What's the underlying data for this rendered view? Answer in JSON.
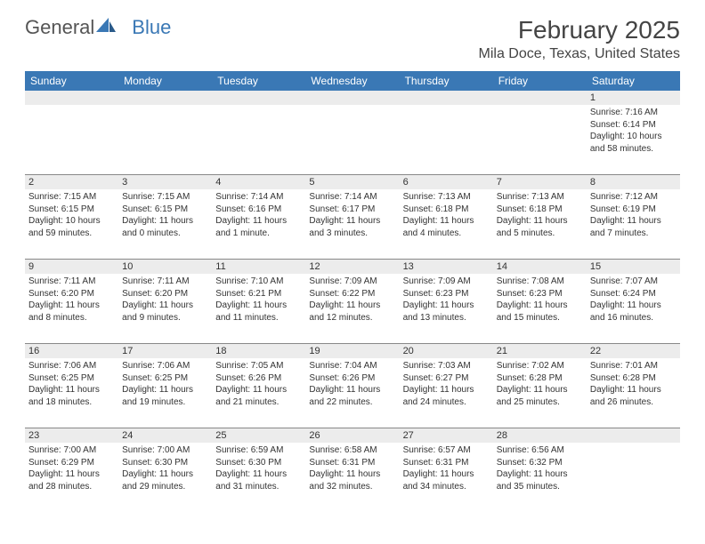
{
  "logo": {
    "part1": "General",
    "part2": "Blue"
  },
  "title": "February 2025",
  "location": "Mila Doce, Texas, United States",
  "colors": {
    "header_bg": "#3a78b5",
    "header_text": "#ffffff",
    "daynum_bg": "#ececec",
    "border": "#888888",
    "text": "#333333",
    "bg": "#ffffff"
  },
  "day_names": [
    "Sunday",
    "Monday",
    "Tuesday",
    "Wednesday",
    "Thursday",
    "Friday",
    "Saturday"
  ],
  "weeks": [
    [
      null,
      null,
      null,
      null,
      null,
      null,
      {
        "n": "1",
        "sr": "Sunrise: 7:16 AM",
        "ss": "Sunset: 6:14 PM",
        "dl": "Daylight: 10 hours and 58 minutes."
      }
    ],
    [
      {
        "n": "2",
        "sr": "Sunrise: 7:15 AM",
        "ss": "Sunset: 6:15 PM",
        "dl": "Daylight: 10 hours and 59 minutes."
      },
      {
        "n": "3",
        "sr": "Sunrise: 7:15 AM",
        "ss": "Sunset: 6:15 PM",
        "dl": "Daylight: 11 hours and 0 minutes."
      },
      {
        "n": "4",
        "sr": "Sunrise: 7:14 AM",
        "ss": "Sunset: 6:16 PM",
        "dl": "Daylight: 11 hours and 1 minute."
      },
      {
        "n": "5",
        "sr": "Sunrise: 7:14 AM",
        "ss": "Sunset: 6:17 PM",
        "dl": "Daylight: 11 hours and 3 minutes."
      },
      {
        "n": "6",
        "sr": "Sunrise: 7:13 AM",
        "ss": "Sunset: 6:18 PM",
        "dl": "Daylight: 11 hours and 4 minutes."
      },
      {
        "n": "7",
        "sr": "Sunrise: 7:13 AM",
        "ss": "Sunset: 6:18 PM",
        "dl": "Daylight: 11 hours and 5 minutes."
      },
      {
        "n": "8",
        "sr": "Sunrise: 7:12 AM",
        "ss": "Sunset: 6:19 PM",
        "dl": "Daylight: 11 hours and 7 minutes."
      }
    ],
    [
      {
        "n": "9",
        "sr": "Sunrise: 7:11 AM",
        "ss": "Sunset: 6:20 PM",
        "dl": "Daylight: 11 hours and 8 minutes."
      },
      {
        "n": "10",
        "sr": "Sunrise: 7:11 AM",
        "ss": "Sunset: 6:20 PM",
        "dl": "Daylight: 11 hours and 9 minutes."
      },
      {
        "n": "11",
        "sr": "Sunrise: 7:10 AM",
        "ss": "Sunset: 6:21 PM",
        "dl": "Daylight: 11 hours and 11 minutes."
      },
      {
        "n": "12",
        "sr": "Sunrise: 7:09 AM",
        "ss": "Sunset: 6:22 PM",
        "dl": "Daylight: 11 hours and 12 minutes."
      },
      {
        "n": "13",
        "sr": "Sunrise: 7:09 AM",
        "ss": "Sunset: 6:23 PM",
        "dl": "Daylight: 11 hours and 13 minutes."
      },
      {
        "n": "14",
        "sr": "Sunrise: 7:08 AM",
        "ss": "Sunset: 6:23 PM",
        "dl": "Daylight: 11 hours and 15 minutes."
      },
      {
        "n": "15",
        "sr": "Sunrise: 7:07 AM",
        "ss": "Sunset: 6:24 PM",
        "dl": "Daylight: 11 hours and 16 minutes."
      }
    ],
    [
      {
        "n": "16",
        "sr": "Sunrise: 7:06 AM",
        "ss": "Sunset: 6:25 PM",
        "dl": "Daylight: 11 hours and 18 minutes."
      },
      {
        "n": "17",
        "sr": "Sunrise: 7:06 AM",
        "ss": "Sunset: 6:25 PM",
        "dl": "Daylight: 11 hours and 19 minutes."
      },
      {
        "n": "18",
        "sr": "Sunrise: 7:05 AM",
        "ss": "Sunset: 6:26 PM",
        "dl": "Daylight: 11 hours and 21 minutes."
      },
      {
        "n": "19",
        "sr": "Sunrise: 7:04 AM",
        "ss": "Sunset: 6:26 PM",
        "dl": "Daylight: 11 hours and 22 minutes."
      },
      {
        "n": "20",
        "sr": "Sunrise: 7:03 AM",
        "ss": "Sunset: 6:27 PM",
        "dl": "Daylight: 11 hours and 24 minutes."
      },
      {
        "n": "21",
        "sr": "Sunrise: 7:02 AM",
        "ss": "Sunset: 6:28 PM",
        "dl": "Daylight: 11 hours and 25 minutes."
      },
      {
        "n": "22",
        "sr": "Sunrise: 7:01 AM",
        "ss": "Sunset: 6:28 PM",
        "dl": "Daylight: 11 hours and 26 minutes."
      }
    ],
    [
      {
        "n": "23",
        "sr": "Sunrise: 7:00 AM",
        "ss": "Sunset: 6:29 PM",
        "dl": "Daylight: 11 hours and 28 minutes."
      },
      {
        "n": "24",
        "sr": "Sunrise: 7:00 AM",
        "ss": "Sunset: 6:30 PM",
        "dl": "Daylight: 11 hours and 29 minutes."
      },
      {
        "n": "25",
        "sr": "Sunrise: 6:59 AM",
        "ss": "Sunset: 6:30 PM",
        "dl": "Daylight: 11 hours and 31 minutes."
      },
      {
        "n": "26",
        "sr": "Sunrise: 6:58 AM",
        "ss": "Sunset: 6:31 PM",
        "dl": "Daylight: 11 hours and 32 minutes."
      },
      {
        "n": "27",
        "sr": "Sunrise: 6:57 AM",
        "ss": "Sunset: 6:31 PM",
        "dl": "Daylight: 11 hours and 34 minutes."
      },
      {
        "n": "28",
        "sr": "Sunrise: 6:56 AM",
        "ss": "Sunset: 6:32 PM",
        "dl": "Daylight: 11 hours and 35 minutes."
      },
      null
    ]
  ]
}
